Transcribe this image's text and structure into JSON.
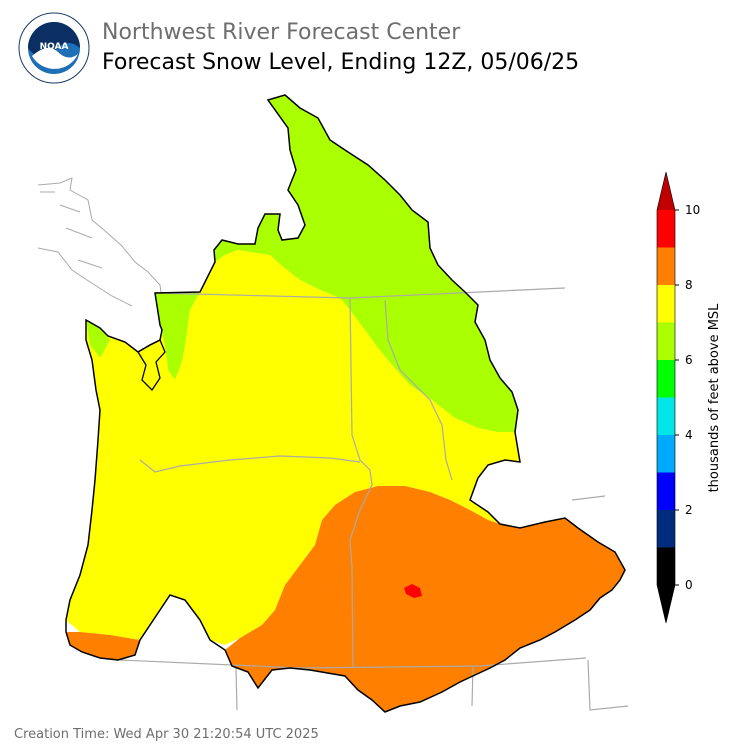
{
  "header": {
    "organization": "Northwest River Forecast Center",
    "title": "Forecast Snow Level, Ending 12Z, 05/06/25"
  },
  "logo": {
    "name": "NOAA",
    "ring_text": "NATIONAL OCEANIC AND ATMOSPHERIC ADMINISTRATION · U.S. DEPARTMENT OF COMMERCE"
  },
  "legend": {
    "title": "thousands of feet above MSL",
    "ticks": [
      "0",
      "2",
      "4",
      "6",
      "8",
      "10"
    ],
    "bins": [
      {
        "range": "0-1",
        "color": "#000000"
      },
      {
        "range": "1-2",
        "color": "#002c7f"
      },
      {
        "range": "2-3",
        "color": "#0000ff"
      },
      {
        "range": "3-4",
        "color": "#00aaff"
      },
      {
        "range": "4-5",
        "color": "#00e5e5"
      },
      {
        "range": "5-6",
        "color": "#00ff00"
      },
      {
        "range": "6-7",
        "color": "#aaff00"
      },
      {
        "range": "7-8",
        "color": "#ffff00"
      },
      {
        "range": "8-9",
        "color": "#ff8000"
      },
      {
        "range": "9-10",
        "color": "#ff0000"
      },
      {
        "range": ">10",
        "color": "#c00000"
      },
      {
        "range": "<0",
        "color": "#000000"
      }
    ]
  },
  "map_colors": {
    "level_6_7": "#aaff00",
    "level_7_8": "#ffff00",
    "level_8_9": "#ff8000",
    "level_9_10": "#ff0000",
    "state_borders": "#aaaaaa",
    "basin_outline": "#000000"
  },
  "footer": {
    "creation_time": "Creation Time: Wed Apr 30 21:20:54 UTC 2025"
  }
}
